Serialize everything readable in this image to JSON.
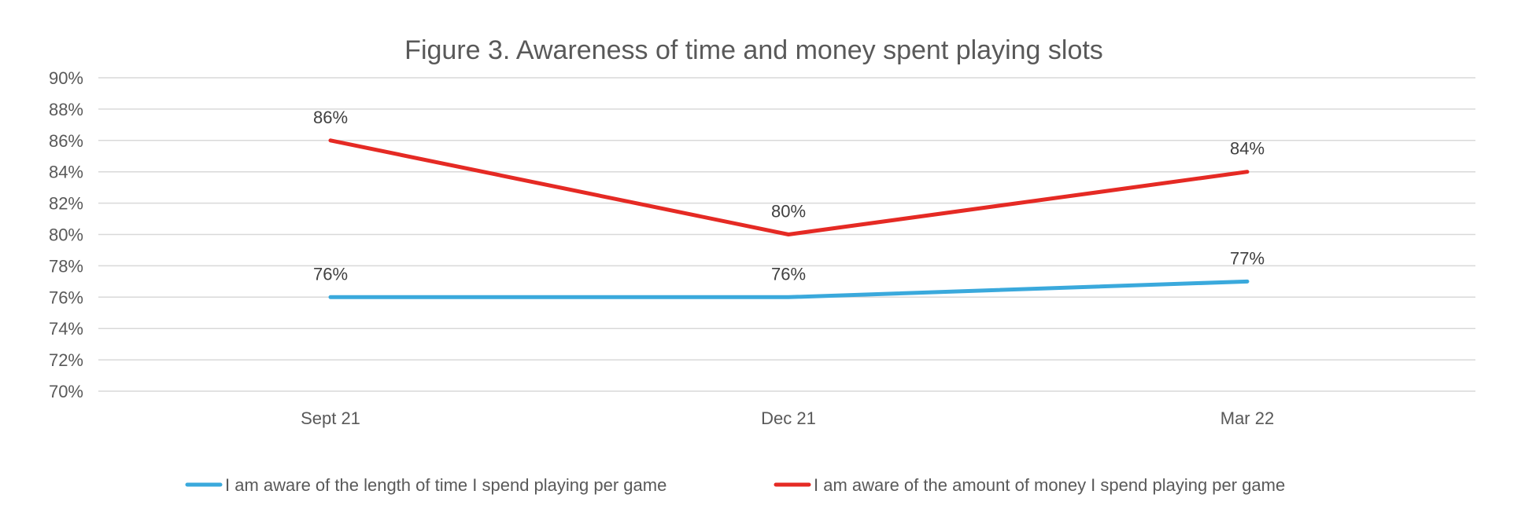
{
  "chart_data": {
    "type": "line",
    "title": "Figure 3. Awareness of time and money spent playing slots",
    "xlabel": "",
    "ylabel": "",
    "categories": [
      "Sept 21",
      "Dec 21",
      "Mar 22"
    ],
    "ylim": [
      70,
      90
    ],
    "ytick_step": 2,
    "ytick_suffix": "%",
    "grid": true,
    "legend_position": "bottom",
    "series": [
      {
        "name": "I am aware of the length of time I spend playing per game",
        "color": "#3AA9DC",
        "values": [
          76,
          76,
          77
        ],
        "labels": [
          "76%",
          "76%",
          "77%"
        ]
      },
      {
        "name": "I am aware of the amount of money I spend playing per game",
        "color": "#E52A24",
        "values": [
          86,
          80,
          84
        ],
        "labels": [
          "86%",
          "80%",
          "84%"
        ]
      }
    ]
  }
}
